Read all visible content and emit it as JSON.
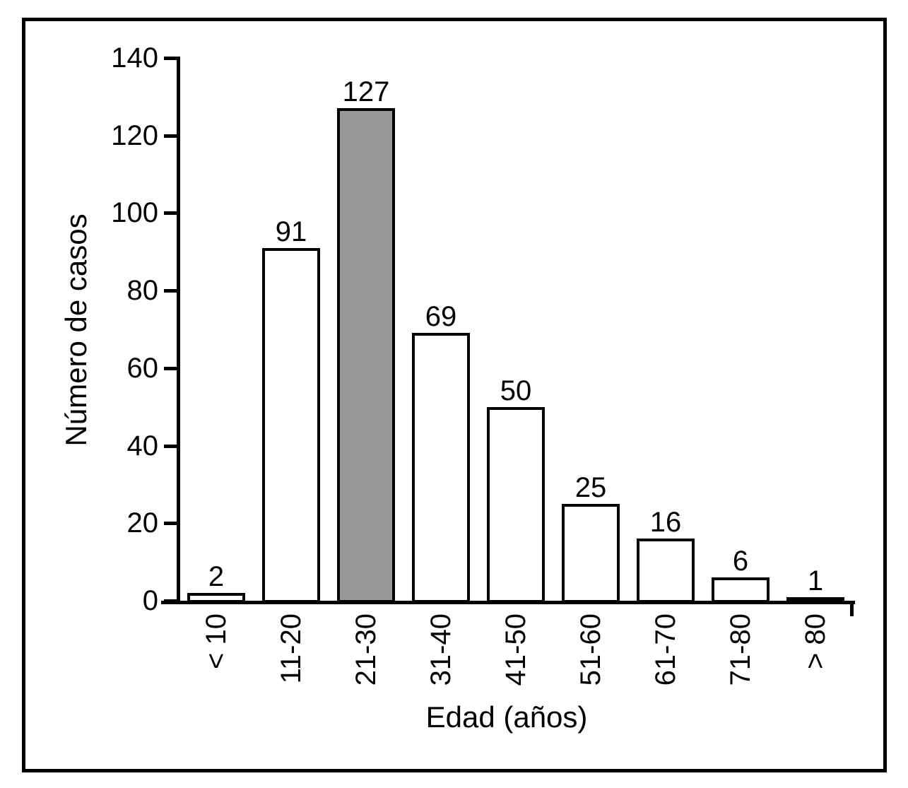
{
  "figure": {
    "background": "#ffffff",
    "frame_color": "#000000"
  },
  "chart_data": {
    "type": "bar",
    "title": "",
    "categories": [
      "< 10",
      "11-20",
      "21-30",
      "31-40",
      "41-50",
      "51-60",
      "61-70",
      "71-80",
      "> 80"
    ],
    "values": [
      2,
      91,
      127,
      69,
      50,
      25,
      16,
      6,
      1
    ],
    "highlighted_index": 2,
    "highlighted_category": "21-30",
    "xlabel": "Edad (años)",
    "ylabel": "Número de casos",
    "ylim": [
      0,
      140
    ],
    "yticks": [
      0,
      20,
      40,
      60,
      80,
      100,
      120,
      140
    ],
    "grid": false,
    "legend": null,
    "x_tick_label_rotation_deg": -90,
    "colors": {
      "bar_fill": "#ffffff",
      "highlight_fill": "#999999",
      "bar_border": "#000000",
      "axis": "#000000",
      "text": "#000000"
    }
  }
}
